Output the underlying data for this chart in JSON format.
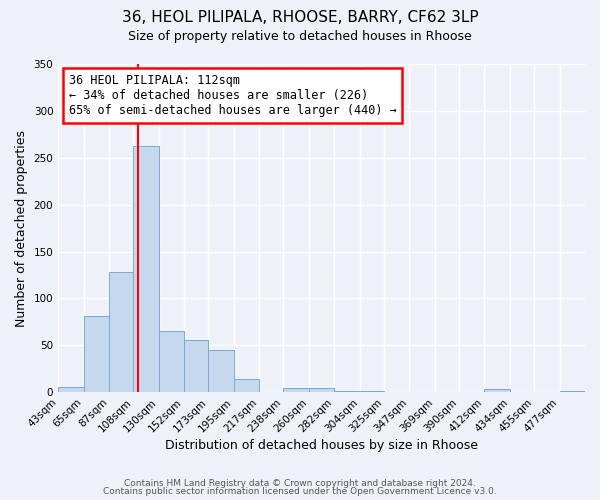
{
  "title_line1": "36, HEOL PILIPALA, RHOOSE, BARRY, CF62 3LP",
  "title_line2": "Size of property relative to detached houses in Rhoose",
  "xlabel": "Distribution of detached houses by size in Rhoose",
  "ylabel": "Number of detached properties",
  "bin_labels": [
    "43sqm",
    "65sqm",
    "87sqm",
    "108sqm",
    "130sqm",
    "152sqm",
    "173sqm",
    "195sqm",
    "217sqm",
    "238sqm",
    "260sqm",
    "282sqm",
    "304sqm",
    "325sqm",
    "347sqm",
    "369sqm",
    "390sqm",
    "412sqm",
    "434sqm",
    "455sqm",
    "477sqm"
  ],
  "bin_edges": [
    43,
    65,
    87,
    108,
    130,
    152,
    173,
    195,
    217,
    238,
    260,
    282,
    304,
    325,
    347,
    369,
    390,
    412,
    434,
    455,
    477
  ],
  "bar_heights": [
    6,
    81,
    128,
    263,
    65,
    56,
    45,
    14,
    0,
    5,
    4,
    1,
    1,
    0,
    0,
    0,
    0,
    3,
    0,
    0,
    1
  ],
  "bar_color": "#c5d8ee",
  "bar_edge_color": "#7aaad0",
  "vline_x": 112,
  "vline_color": "red",
  "annotation_line1": "36 HEOL PILIPALA: 112sqm",
  "annotation_line2": "← 34% of detached houses are smaller (226)",
  "annotation_line3": "65% of semi-detached houses are larger (440) →",
  "annotation_box_color": "white",
  "annotation_box_edgecolor": "red",
  "ylim": [
    0,
    350
  ],
  "yticks": [
    0,
    50,
    100,
    150,
    200,
    250,
    300,
    350
  ],
  "footer_line1": "Contains HM Land Registry data © Crown copyright and database right 2024.",
  "footer_line2": "Contains public sector information licensed under the Open Government Licence v3.0.",
  "bg_color": "#eef2f8",
  "grid_color": "white"
}
